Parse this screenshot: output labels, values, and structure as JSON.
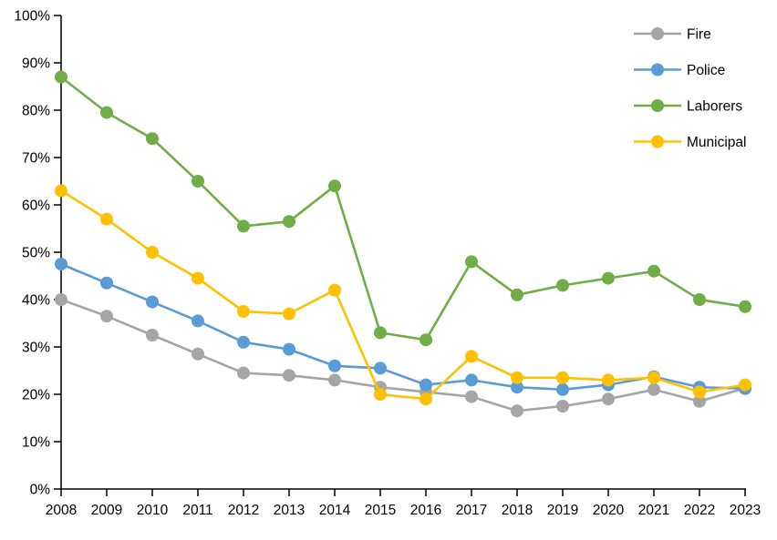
{
  "chart_data": {
    "type": "line",
    "title": "",
    "xlabel": "",
    "ylabel": "",
    "grid": false,
    "marker": "circle",
    "legend_position": "top-right",
    "ylim": [
      0,
      100
    ],
    "y_tick_step": 10,
    "y_tick_labels": [
      "0%",
      "10%",
      "20%",
      "30%",
      "40%",
      "50%",
      "60%",
      "70%",
      "80%",
      "90%",
      "100%"
    ],
    "x_tick_labels": [
      "2008",
      "2009",
      "2010",
      "2011",
      "2012",
      "2013",
      "2014",
      "2015",
      "2016",
      "2017",
      "2018",
      "2019",
      "2020",
      "2021",
      "2022",
      "2023"
    ],
    "series": [
      {
        "name": "Fire",
        "color": "#A5A5A5",
        "values": [
          40,
          36.5,
          32.5,
          28.5,
          24.5,
          24,
          23,
          21.5,
          20.5,
          19.5,
          16.5,
          17.5,
          19,
          21,
          18.5,
          21.3
        ]
      },
      {
        "name": "Police",
        "color": "#5B9BD5",
        "values": [
          47.5,
          43.5,
          39.5,
          35.5,
          31,
          29.5,
          26,
          25.5,
          22,
          23,
          21.5,
          21,
          22,
          23.7,
          21.5,
          21.2
        ]
      },
      {
        "name": "Laborers",
        "color": "#70AD47",
        "values": [
          87,
          79.5,
          74,
          65,
          55.5,
          56.5,
          64,
          33,
          31.5,
          48,
          41,
          43,
          44.5,
          46,
          40,
          38.5
        ]
      },
      {
        "name": "Municipal",
        "color": "#FFC000",
        "values": [
          63,
          57,
          50,
          44.5,
          37.5,
          37,
          42,
          20,
          19,
          28,
          23.5,
          23.5,
          23,
          23.5,
          20.5,
          22
        ]
      }
    ]
  }
}
